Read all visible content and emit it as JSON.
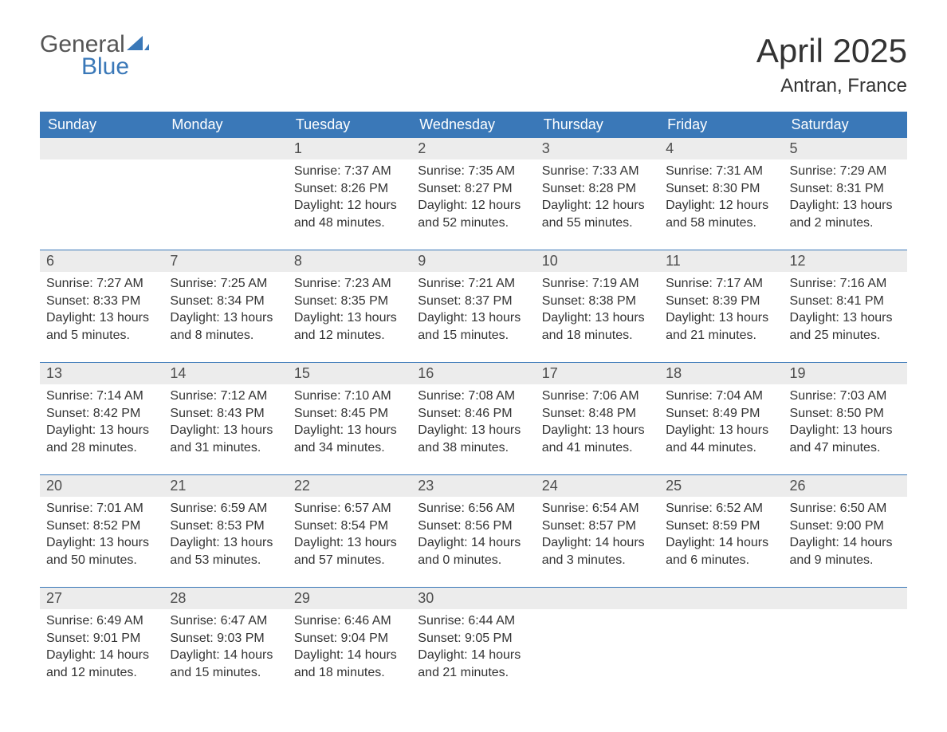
{
  "brand": {
    "top": "General",
    "bottom": "Blue",
    "sail_color": "#3a78b8"
  },
  "title": "April 2025",
  "location": "Antran, France",
  "colors": {
    "header_bg": "#3a78b8",
    "header_text": "#ffffff",
    "daynum_bg": "#ececec",
    "daynum_text": "#4d4d4d",
    "body_text": "#333333",
    "week_border": "#3a78b8",
    "page_bg": "#ffffff"
  },
  "fonts": {
    "title_size_pt": 32,
    "subtitle_size_pt": 18,
    "dayname_size_pt": 14,
    "daynum_size_pt": 14,
    "body_size_pt": 12
  },
  "daynames": [
    "Sunday",
    "Monday",
    "Tuesday",
    "Wednesday",
    "Thursday",
    "Friday",
    "Saturday"
  ],
  "weeks": [
    [
      {
        "n": "",
        "sunrise": "",
        "sunset": "",
        "daylight": ""
      },
      {
        "n": "",
        "sunrise": "",
        "sunset": "",
        "daylight": ""
      },
      {
        "n": "1",
        "sunrise": "Sunrise: 7:37 AM",
        "sunset": "Sunset: 8:26 PM",
        "daylight": "Daylight: 12 hours and 48 minutes."
      },
      {
        "n": "2",
        "sunrise": "Sunrise: 7:35 AM",
        "sunset": "Sunset: 8:27 PM",
        "daylight": "Daylight: 12 hours and 52 minutes."
      },
      {
        "n": "3",
        "sunrise": "Sunrise: 7:33 AM",
        "sunset": "Sunset: 8:28 PM",
        "daylight": "Daylight: 12 hours and 55 minutes."
      },
      {
        "n": "4",
        "sunrise": "Sunrise: 7:31 AM",
        "sunset": "Sunset: 8:30 PM",
        "daylight": "Daylight: 12 hours and 58 minutes."
      },
      {
        "n": "5",
        "sunrise": "Sunrise: 7:29 AM",
        "sunset": "Sunset: 8:31 PM",
        "daylight": "Daylight: 13 hours and 2 minutes."
      }
    ],
    [
      {
        "n": "6",
        "sunrise": "Sunrise: 7:27 AM",
        "sunset": "Sunset: 8:33 PM",
        "daylight": "Daylight: 13 hours and 5 minutes."
      },
      {
        "n": "7",
        "sunrise": "Sunrise: 7:25 AM",
        "sunset": "Sunset: 8:34 PM",
        "daylight": "Daylight: 13 hours and 8 minutes."
      },
      {
        "n": "8",
        "sunrise": "Sunrise: 7:23 AM",
        "sunset": "Sunset: 8:35 PM",
        "daylight": "Daylight: 13 hours and 12 minutes."
      },
      {
        "n": "9",
        "sunrise": "Sunrise: 7:21 AM",
        "sunset": "Sunset: 8:37 PM",
        "daylight": "Daylight: 13 hours and 15 minutes."
      },
      {
        "n": "10",
        "sunrise": "Sunrise: 7:19 AM",
        "sunset": "Sunset: 8:38 PM",
        "daylight": "Daylight: 13 hours and 18 minutes."
      },
      {
        "n": "11",
        "sunrise": "Sunrise: 7:17 AM",
        "sunset": "Sunset: 8:39 PM",
        "daylight": "Daylight: 13 hours and 21 minutes."
      },
      {
        "n": "12",
        "sunrise": "Sunrise: 7:16 AM",
        "sunset": "Sunset: 8:41 PM",
        "daylight": "Daylight: 13 hours and 25 minutes."
      }
    ],
    [
      {
        "n": "13",
        "sunrise": "Sunrise: 7:14 AM",
        "sunset": "Sunset: 8:42 PM",
        "daylight": "Daylight: 13 hours and 28 minutes."
      },
      {
        "n": "14",
        "sunrise": "Sunrise: 7:12 AM",
        "sunset": "Sunset: 8:43 PM",
        "daylight": "Daylight: 13 hours and 31 minutes."
      },
      {
        "n": "15",
        "sunrise": "Sunrise: 7:10 AM",
        "sunset": "Sunset: 8:45 PM",
        "daylight": "Daylight: 13 hours and 34 minutes."
      },
      {
        "n": "16",
        "sunrise": "Sunrise: 7:08 AM",
        "sunset": "Sunset: 8:46 PM",
        "daylight": "Daylight: 13 hours and 38 minutes."
      },
      {
        "n": "17",
        "sunrise": "Sunrise: 7:06 AM",
        "sunset": "Sunset: 8:48 PM",
        "daylight": "Daylight: 13 hours and 41 minutes."
      },
      {
        "n": "18",
        "sunrise": "Sunrise: 7:04 AM",
        "sunset": "Sunset: 8:49 PM",
        "daylight": "Daylight: 13 hours and 44 minutes."
      },
      {
        "n": "19",
        "sunrise": "Sunrise: 7:03 AM",
        "sunset": "Sunset: 8:50 PM",
        "daylight": "Daylight: 13 hours and 47 minutes."
      }
    ],
    [
      {
        "n": "20",
        "sunrise": "Sunrise: 7:01 AM",
        "sunset": "Sunset: 8:52 PM",
        "daylight": "Daylight: 13 hours and 50 minutes."
      },
      {
        "n": "21",
        "sunrise": "Sunrise: 6:59 AM",
        "sunset": "Sunset: 8:53 PM",
        "daylight": "Daylight: 13 hours and 53 minutes."
      },
      {
        "n": "22",
        "sunrise": "Sunrise: 6:57 AM",
        "sunset": "Sunset: 8:54 PM",
        "daylight": "Daylight: 13 hours and 57 minutes."
      },
      {
        "n": "23",
        "sunrise": "Sunrise: 6:56 AM",
        "sunset": "Sunset: 8:56 PM",
        "daylight": "Daylight: 14 hours and 0 minutes."
      },
      {
        "n": "24",
        "sunrise": "Sunrise: 6:54 AM",
        "sunset": "Sunset: 8:57 PM",
        "daylight": "Daylight: 14 hours and 3 minutes."
      },
      {
        "n": "25",
        "sunrise": "Sunrise: 6:52 AM",
        "sunset": "Sunset: 8:59 PM",
        "daylight": "Daylight: 14 hours and 6 minutes."
      },
      {
        "n": "26",
        "sunrise": "Sunrise: 6:50 AM",
        "sunset": "Sunset: 9:00 PM",
        "daylight": "Daylight: 14 hours and 9 minutes."
      }
    ],
    [
      {
        "n": "27",
        "sunrise": "Sunrise: 6:49 AM",
        "sunset": "Sunset: 9:01 PM",
        "daylight": "Daylight: 14 hours and 12 minutes."
      },
      {
        "n": "28",
        "sunrise": "Sunrise: 6:47 AM",
        "sunset": "Sunset: 9:03 PM",
        "daylight": "Daylight: 14 hours and 15 minutes."
      },
      {
        "n": "29",
        "sunrise": "Sunrise: 6:46 AM",
        "sunset": "Sunset: 9:04 PM",
        "daylight": "Daylight: 14 hours and 18 minutes."
      },
      {
        "n": "30",
        "sunrise": "Sunrise: 6:44 AM",
        "sunset": "Sunset: 9:05 PM",
        "daylight": "Daylight: 14 hours and 21 minutes."
      },
      {
        "n": "",
        "sunrise": "",
        "sunset": "",
        "daylight": ""
      },
      {
        "n": "",
        "sunrise": "",
        "sunset": "",
        "daylight": ""
      },
      {
        "n": "",
        "sunrise": "",
        "sunset": "",
        "daylight": ""
      }
    ]
  ]
}
